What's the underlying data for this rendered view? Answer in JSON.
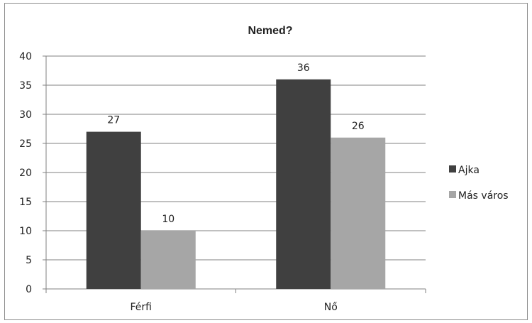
{
  "chart_data": {
    "type": "bar",
    "title": "Nemed?",
    "categories": [
      "Férfi",
      "Nő"
    ],
    "series": [
      {
        "name": "Ajka",
        "values": [
          27,
          36
        ],
        "color": "#404040"
      },
      {
        "name": "Más város",
        "values": [
          10,
          26
        ],
        "color": "#a6a6a6"
      }
    ],
    "ylim": [
      0,
      40
    ],
    "yticks": [
      0,
      5,
      10,
      15,
      20,
      25,
      30,
      35,
      40
    ],
    "grid": true,
    "legend_position": "right",
    "data_labels": true
  }
}
